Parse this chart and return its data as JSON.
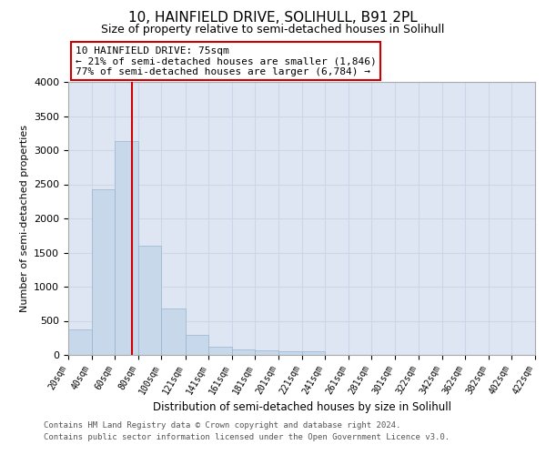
{
  "title_line1": "10, HAINFIELD DRIVE, SOLIHULL, B91 2PL",
  "title_line2": "Size of property relative to semi-detached houses in Solihull",
  "xlabel": "Distribution of semi-detached houses by size in Solihull",
  "ylabel": "Number of semi-detached properties",
  "footer_line1": "Contains HM Land Registry data © Crown copyright and database right 2024.",
  "footer_line2": "Contains public sector information licensed under the Open Government Licence v3.0.",
  "annotation_title": "10 HAINFIELD DRIVE: 75sqm",
  "annotation_line1": "← 21% of semi-detached houses are smaller (1,846)",
  "annotation_line2": "77% of semi-detached houses are larger (6,784) →",
  "property_size": 75,
  "bin_edges": [
    20,
    40,
    60,
    80,
    100,
    121,
    141,
    161,
    181,
    201,
    221,
    241,
    261,
    281,
    301,
    322,
    342,
    362,
    382,
    402,
    422
  ],
  "bar_values": [
    370,
    2430,
    3130,
    1600,
    680,
    300,
    125,
    80,
    70,
    60,
    50,
    0,
    0,
    0,
    0,
    0,
    0,
    0,
    0,
    0
  ],
  "bar_color": "#c6d8ea",
  "bar_edgecolor": "#9ab4cc",
  "highlight_line_color": "#cc0000",
  "grid_color": "#ccd6e8",
  "background_color": "#dde6f2",
  "ylim": [
    0,
    4000
  ],
  "yticks": [
    0,
    500,
    1000,
    1500,
    2000,
    2500,
    3000,
    3500,
    4000
  ]
}
